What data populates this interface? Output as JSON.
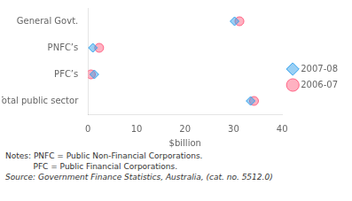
{
  "chart_data": {
    "type": "scatter",
    "categories": [
      "General Govt.",
      "PNFC’s",
      "PFC’s",
      "Total public sector"
    ],
    "series": [
      {
        "name": "2007-08",
        "marker": "diamond",
        "values": [
          30.2,
          1.0,
          1.3,
          33.5
        ]
      },
      {
        "name": "2006-07",
        "marker": "circle",
        "values": [
          31.2,
          2.3,
          0.6,
          34.2
        ]
      }
    ],
    "xlabel": "$billion",
    "xlim": [
      0,
      40
    ],
    "xticks": [
      0,
      10,
      20,
      30,
      40
    ],
    "grid": false,
    "legend": "right",
    "annotations": [
      "Notes: PNFC = Public Non-Financial Corporations.",
      "           PFC = Public Financial Corporations.",
      "Source: Government Finance Statistics, Australia, (cat. no. 5512.0)"
    ]
  }
}
